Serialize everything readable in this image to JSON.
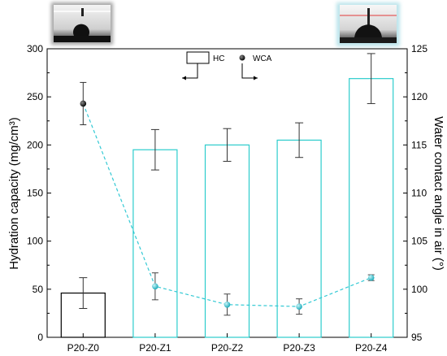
{
  "chart_data": {
    "type": "bar",
    "categories": [
      "P20-Z0",
      "P20-Z1",
      "P20-Z2",
      "P20-Z3",
      "P20-Z4"
    ],
    "series": [
      {
        "name": "HC",
        "kind": "bar",
        "axis": "left",
        "values": [
          46,
          195,
          200,
          205,
          269
        ],
        "errors": [
          16,
          21,
          17,
          18,
          26
        ],
        "colors": [
          "#000000",
          "#2ccccc",
          "#2ccccc",
          "#2ccccc",
          "#2ccccc"
        ]
      },
      {
        "name": "WCA",
        "kind": "line-markers",
        "axis": "right",
        "values": [
          119.3,
          100.3,
          98.4,
          98.2,
          101.2
        ],
        "errors": [
          2.2,
          1.4,
          1.1,
          0.8,
          0.3
        ],
        "colors": [
          "#111111",
          "#22bbcc",
          "#22bbcc",
          "#22bbcc",
          "#22bbcc"
        ],
        "line_color": "#33c9d4"
      }
    ],
    "ylabel": "Hydration capacity (mg/cm³)",
    "y2label": "Water contact angle in air (°)",
    "ylim": [
      0,
      300
    ],
    "y2lim": [
      95,
      125
    ],
    "yticks": [
      "0",
      "50",
      "100",
      "150",
      "200",
      "250",
      "300"
    ],
    "y2ticks": [
      "95",
      "100",
      "105",
      "110",
      "115",
      "120",
      "125"
    ],
    "legend": {
      "placement": "top-center",
      "entries": [
        {
          "label": "HC",
          "symbol": "open-rectangle",
          "arrow": "left"
        },
        {
          "label": "WCA",
          "symbol": "filled-circle",
          "arrow": "right"
        }
      ]
    },
    "insets": [
      {
        "name": "droplet-photo-left",
        "border_color": "#555555",
        "tint": "#000000"
      },
      {
        "name": "droplet-photo-right",
        "border_color": "#9fd6df",
        "tint": "#6ec6d4"
      }
    ]
  }
}
